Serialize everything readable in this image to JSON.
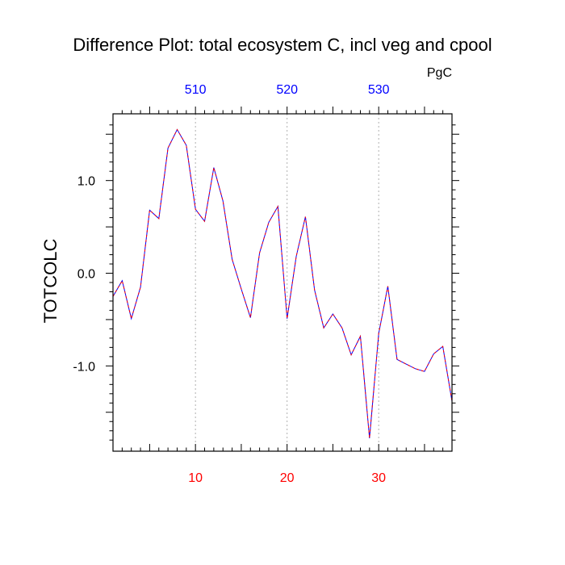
{
  "chart_data": {
    "type": "line",
    "title": "Difference Plot: total ecosystem C, incl veg and cpool",
    "units": "PgC",
    "ylabel": "TOTCOLC",
    "xlabel": "",
    "xlim": [
      1,
      38
    ],
    "ylim": [
      -1.92,
      1.72
    ],
    "bottom_ticks": [
      {
        "value": 10,
        "label": "10"
      },
      {
        "value": 20,
        "label": "20"
      },
      {
        "value": 30,
        "label": "30"
      }
    ],
    "top_ticks": [
      {
        "value": 10,
        "label": "510"
      },
      {
        "value": 20,
        "label": "520"
      },
      {
        "value": 30,
        "label": "530"
      }
    ],
    "y_ticks": [
      {
        "value": 1.0,
        "label": "1.0"
      },
      {
        "value": 0.0,
        "label": "0.0"
      },
      {
        "value": -1.0,
        "label": "-1.0"
      }
    ],
    "gridlines_x": [
      10,
      20,
      30
    ],
    "colors": {
      "bottom_tick_labels": "#ff0000",
      "top_tick_labels": "#0000ff",
      "line_primary": "#0000ff",
      "line_dash": "#ff0000",
      "grid": "#b0b0b0"
    },
    "series": [
      {
        "x": [
          1,
          2,
          3,
          4,
          5,
          6,
          7,
          8,
          9,
          10,
          11,
          12,
          13,
          14,
          15,
          16,
          17,
          18,
          19,
          20,
          21,
          22,
          23,
          24,
          25,
          26,
          27,
          28,
          29,
          30,
          31,
          32,
          33,
          34,
          35,
          36,
          37,
          38
        ],
        "values": [
          -0.25,
          -0.08,
          -0.49,
          -0.15,
          0.68,
          0.59,
          1.35,
          1.55,
          1.38,
          0.69,
          0.56,
          1.14,
          0.78,
          0.15,
          -0.17,
          -0.48,
          0.22,
          0.55,
          0.72,
          -0.49,
          0.18,
          0.61,
          -0.18,
          -0.59,
          -0.44,
          -0.59,
          -0.88,
          -0.68,
          -1.78,
          -0.65,
          -0.14,
          -0.93,
          -0.98,
          -1.03,
          -1.06,
          -0.87,
          -0.79,
          -1.38
        ]
      }
    ]
  }
}
